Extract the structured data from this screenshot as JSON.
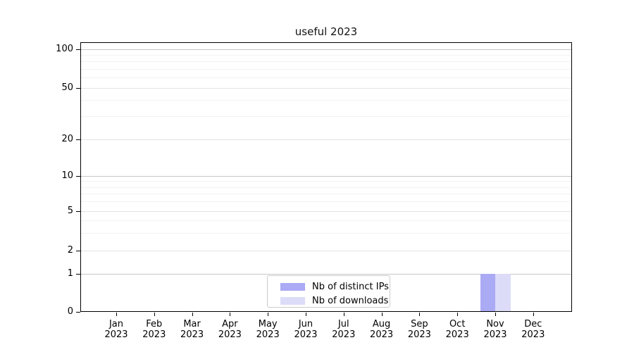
{
  "chart_data": {
    "type": "bar",
    "title": "useful 2023",
    "categories": [
      "Jan 2023",
      "Feb 2023",
      "Mar 2023",
      "Apr 2023",
      "May 2023",
      "Jun 2023",
      "Jul 2023",
      "Aug 2023",
      "Sep 2023",
      "Oct 2023",
      "Nov 2023",
      "Dec 2023"
    ],
    "x_tick_months": [
      "Jan",
      "Feb",
      "Mar",
      "Apr",
      "May",
      "Jun",
      "Jul",
      "Aug",
      "Sep",
      "Oct",
      "Nov",
      "Dec"
    ],
    "x_tick_year": "2023",
    "series": [
      {
        "name": "Nb of distinct IPs",
        "color": "#aaaaf5",
        "values": [
          0,
          0,
          0,
          0,
          0,
          0,
          0,
          0,
          0,
          0,
          1,
          0
        ]
      },
      {
        "name": "Nb of downloads",
        "color": "#dcdcf8",
        "values": [
          0,
          0,
          0,
          0,
          0,
          0,
          0,
          0,
          0,
          0,
          1,
          0
        ]
      }
    ],
    "xlabel": "",
    "ylabel": "",
    "yscale": "symlog",
    "ylim": [
      0,
      100
    ],
    "y_ticks": [
      0,
      1,
      2,
      5,
      10,
      20,
      50,
      100
    ],
    "y_minor_gridlines": [
      3,
      4,
      6,
      7,
      8,
      9,
      30,
      40,
      60,
      70,
      80,
      90
    ],
    "grid": "horizontal, major and minor",
    "legend_position": "lower center, inside axes"
  },
  "colors": {
    "grid_major": "#c6c6c6",
    "grid_labeled": "#e4e4e4",
    "grid_minor": "#f2f2f2",
    "spine": "#000000",
    "legend_border": "#cccccc"
  }
}
